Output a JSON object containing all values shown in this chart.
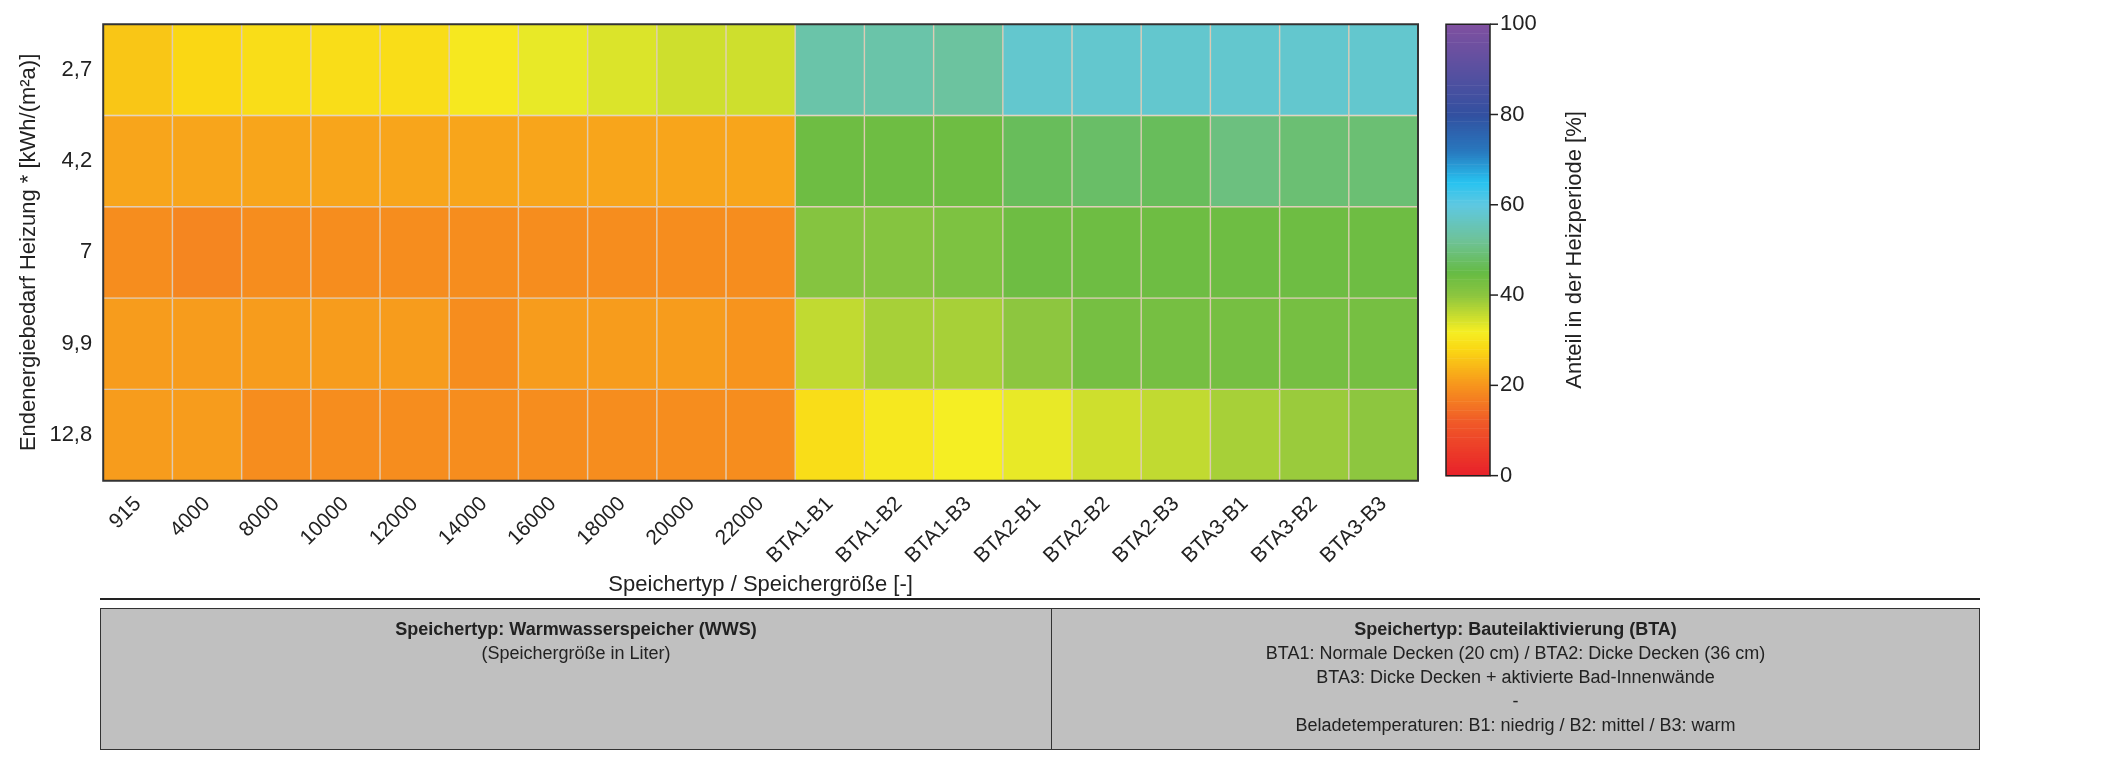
{
  "chart_data": {
    "type": "heatmap",
    "xlabel": "Speichertyp / Speichergröße [-]",
    "ylabel": "Endenergiebedarf Heizung * [kWh/(m²a)]",
    "clabel": "Anteil in der Heizperiode [%]",
    "categories": [
      "915",
      "4000",
      "8000",
      "10000",
      "12000",
      "14000",
      "16000",
      "18000",
      "20000",
      "22000",
      "BTA1-B1",
      "BTA1-B2",
      "BTA1-B3",
      "BTA2-B1",
      "BTA2-B2",
      "BTA2-B3",
      "BTA3-B1",
      "BTA3-B2",
      "BTA3-B3"
    ],
    "y_categories": [
      "2,7",
      "4,2",
      "7",
      "9,9",
      "12,8"
    ],
    "cells": [
      [
        26,
        28,
        29,
        29,
        29,
        31,
        33,
        34,
        35,
        35,
        54,
        54,
        53,
        58,
        58,
        58,
        58,
        58,
        58
      ],
      [
        22,
        22,
        22,
        22,
        22,
        22,
        22,
        22,
        22,
        22,
        44,
        44,
        44,
        47,
        48,
        47,
        50,
        49,
        49
      ],
      [
        19,
        18,
        19,
        19,
        19,
        19,
        19,
        19,
        19,
        19,
        41,
        41,
        42,
        44,
        44,
        44,
        44,
        44,
        44
      ],
      [
        21,
        21,
        21,
        21,
        21,
        19,
        21,
        21,
        21,
        20,
        36,
        38,
        38,
        40,
        43,
        43,
        43,
        43,
        43
      ],
      [
        21,
        21,
        19,
        19,
        19,
        19,
        19,
        19,
        19,
        19,
        29,
        31,
        32,
        33,
        35,
        36,
        38,
        39,
        40
      ]
    ],
    "clim": [
      0,
      100
    ],
    "cticks": [
      0,
      20,
      40,
      60,
      80,
      100
    ],
    "annotations": [
      "Speichertyp: Warmwasserspeicher (WWS)",
      "(Speichergröße in Liter)",
      "Speichertyp: Bauteilaktivierung (BTA)",
      "BTA1: Normale Decken (20 cm)   /   BTA2: Dicke Decken (36 cm)",
      "BTA3: Dicke Decken + aktivierte Bad-Innenwände",
      "-",
      "Beladetemperaturen:    B1: niedrig   /   B2: mittel   /   B3: warm"
    ]
  }
}
